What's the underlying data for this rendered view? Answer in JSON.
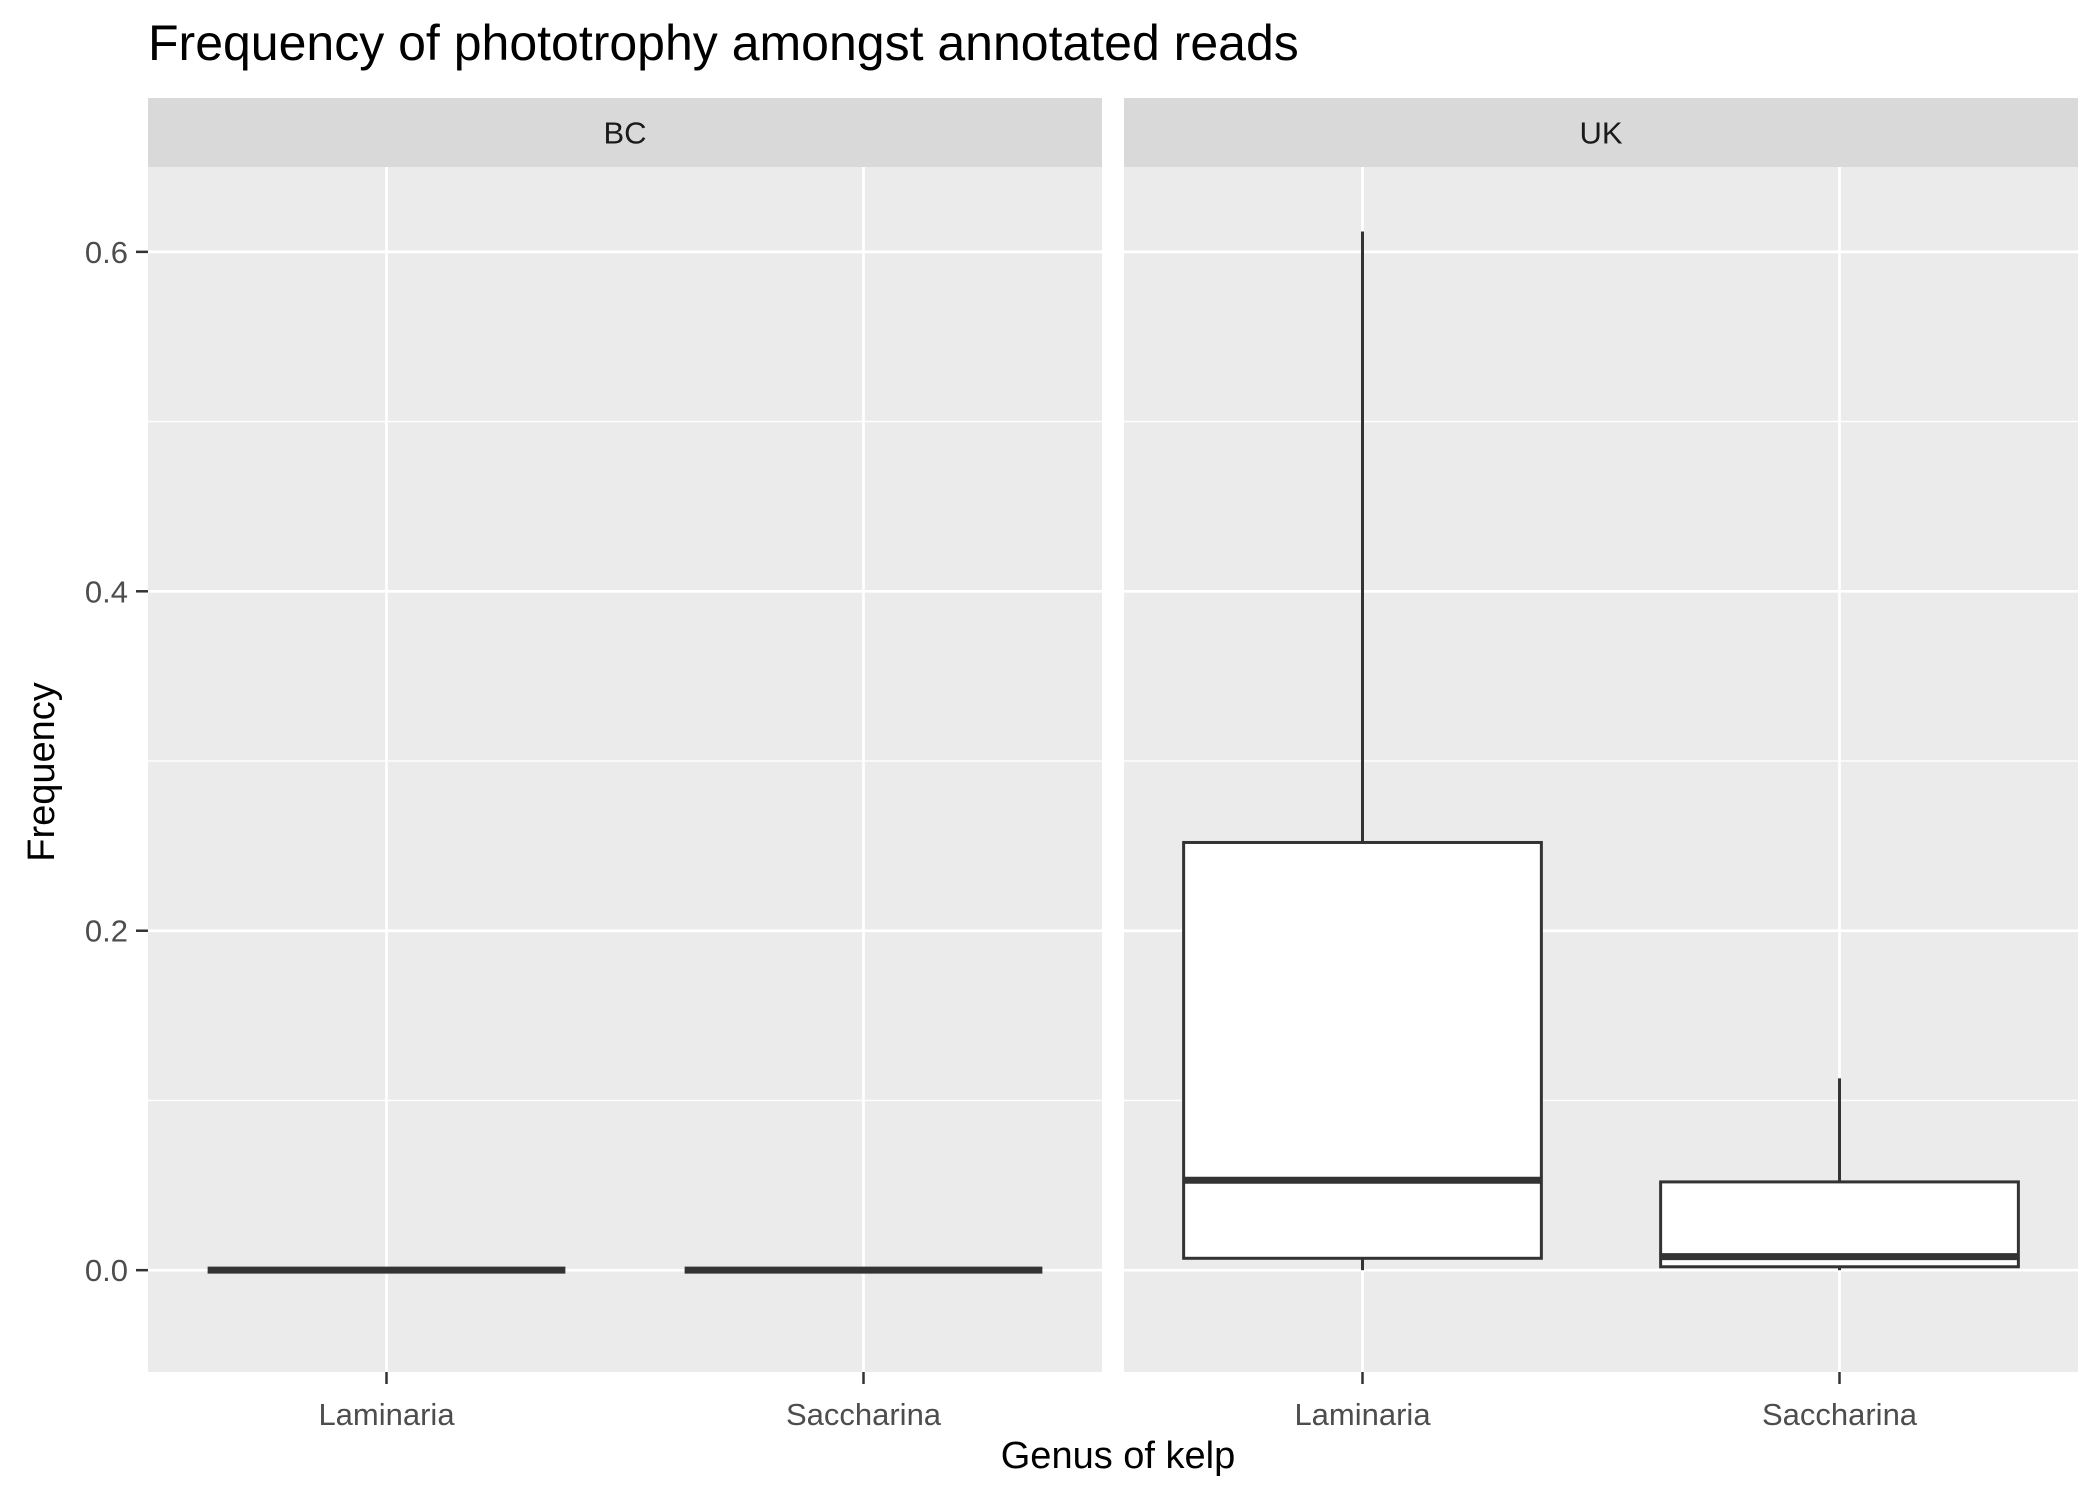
{
  "chart_data": {
    "type": "boxplot",
    "title": "Frequency of phototrophy amongst annotated reads",
    "xlabel": "Genus of kelp",
    "ylabel": "Frequency",
    "ylim": [
      -0.06,
      0.65
    ],
    "y_ticks": [
      0.0,
      0.2,
      0.4,
      0.6
    ],
    "y_tick_labels": [
      "0.0",
      "0.2",
      "0.4",
      "0.6"
    ],
    "categories": [
      "Laminaria",
      "Saccharina"
    ],
    "grid": true,
    "facets": [
      {
        "name": "BC",
        "boxes": [
          {
            "category": "Laminaria",
            "min": 0.0,
            "q1": 0.0,
            "median": 0.0,
            "q3": 0.0,
            "max": 0.0
          },
          {
            "category": "Saccharina",
            "min": 0.0,
            "q1": 0.0,
            "median": 0.0,
            "q3": 0.0,
            "max": 0.0
          }
        ]
      },
      {
        "name": "UK",
        "boxes": [
          {
            "category": "Laminaria",
            "min": 0.0,
            "q1": 0.007,
            "median": 0.053,
            "q3": 0.252,
            "max": 0.612
          },
          {
            "category": "Saccharina",
            "min": 0.0,
            "q1": 0.002,
            "median": 0.008,
            "q3": 0.052,
            "max": 0.113
          }
        ]
      }
    ],
    "colors": {
      "panel_background": "#ebebeb",
      "strip_background": "#d9d9d9",
      "grid": "#ffffff",
      "box_fill": "#ffffff",
      "box_stroke": "#333333",
      "tick": "#333333"
    }
  }
}
